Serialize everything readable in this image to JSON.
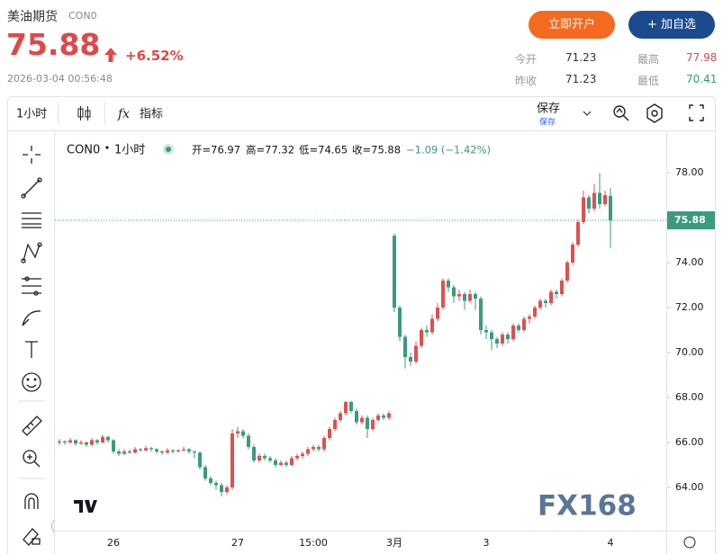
{
  "quote": {
    "name": "美油期货",
    "code": "CON0",
    "price": "75.88",
    "change_pct": "+6.52%",
    "time": "2026-03-04 00:56:48"
  },
  "buttons": {
    "open_account": "立即开户",
    "watchlist": "+ 加自选"
  },
  "stats": [
    {
      "label": "今开",
      "value": "71.23",
      "color": "#333333"
    },
    {
      "label": "最高",
      "value": "77.98",
      "color": "#e04848"
    },
    {
      "label": "昨收",
      "value": "71.23",
      "color": "#333333"
    },
    {
      "label": "最低",
      "value": "70.41",
      "color": "#2e9e6e"
    }
  ],
  "toolbar": {
    "interval": "1小时",
    "indicators": "指标",
    "save": "保存",
    "save_sub": "保存"
  },
  "legend": {
    "symbol": "CON0",
    "interval": "1小时",
    "open": "开=76.97",
    "high": "高=77.32",
    "low": "低=74.65",
    "close": "收=75.88",
    "change": "−1.09 (−1.42%)"
  },
  "watermark": "FX168",
  "chart_data": {
    "type": "candlestick",
    "up_color": "#e0504f",
    "down_color": "#3a9b7e",
    "ylim": [
      62.08,
      79.76
    ],
    "yticks": [
      {
        "value": 64,
        "label": "64.00"
      },
      {
        "value": 66,
        "label": "66.00"
      },
      {
        "value": 68,
        "label": "68.00"
      },
      {
        "value": 70,
        "label": "70.00"
      },
      {
        "value": 72,
        "label": "72.00"
      },
      {
        "value": 74,
        "label": "74.00"
      },
      {
        "value": 76,
        "label": "76.00"
      },
      {
        "value": 78,
        "label": "78.00"
      }
    ],
    "last_price": 75.88,
    "categories": [
      null,
      null,
      null,
      null,
      null,
      null,
      null,
      null,
      null,
      null,
      "26",
      null,
      null,
      null,
      null,
      null,
      null,
      null,
      null,
      null,
      null,
      null,
      null,
      null,
      null,
      null,
      null,
      null,
      null,
      null,
      null,
      null,
      null,
      "27",
      null,
      null,
      null,
      null,
      null,
      null,
      null,
      null,
      null,
      null,
      null,
      null,
      null,
      "15:00",
      null,
      null,
      null,
      null,
      null,
      null,
      null,
      null,
      null,
      null,
      null,
      null,
      null,
      null,
      "3月",
      null,
      null,
      null,
      null,
      null,
      null,
      null,
      null,
      null,
      null,
      null,
      null,
      null,
      null,
      null,
      null,
      "3",
      null,
      null,
      null,
      null,
      null,
      null,
      null,
      null,
      null,
      null,
      null,
      null,
      null,
      null,
      null,
      null,
      null,
      null,
      null,
      null,
      null,
      null,
      "4"
    ],
    "candles": [
      [
        66.0,
        66.15,
        65.9,
        66.05
      ],
      [
        66.05,
        66.1,
        65.9,
        66.0
      ],
      [
        66.0,
        66.2,
        65.95,
        66.1
      ],
      [
        66.1,
        66.15,
        65.85,
        65.95
      ],
      [
        65.95,
        66.1,
        65.9,
        66.0
      ],
      [
        66.0,
        66.05,
        65.8,
        65.9
      ],
      [
        65.9,
        66.2,
        65.85,
        66.1
      ],
      [
        66.1,
        66.15,
        65.9,
        66.0
      ],
      [
        66.0,
        66.35,
        65.95,
        66.25
      ],
      [
        66.25,
        66.3,
        66.0,
        66.1
      ],
      [
        66.1,
        66.15,
        65.5,
        65.6
      ],
      [
        65.6,
        65.7,
        65.4,
        65.5
      ],
      [
        65.5,
        65.7,
        65.45,
        65.6
      ],
      [
        65.6,
        65.7,
        65.5,
        65.55
      ],
      [
        65.55,
        65.8,
        65.5,
        65.7
      ],
      [
        65.7,
        65.75,
        65.6,
        65.65
      ],
      [
        65.65,
        65.85,
        65.6,
        65.75
      ],
      [
        65.75,
        65.8,
        65.6,
        65.7
      ],
      [
        65.7,
        65.75,
        65.5,
        65.6
      ],
      [
        65.6,
        65.65,
        65.45,
        65.55
      ],
      [
        65.55,
        65.75,
        65.5,
        65.65
      ],
      [
        65.65,
        65.7,
        65.5,
        65.6
      ],
      [
        65.6,
        65.7,
        65.55,
        65.65
      ],
      [
        65.65,
        65.8,
        65.6,
        65.7
      ],
      [
        65.7,
        65.75,
        65.5,
        65.6
      ],
      [
        65.6,
        65.65,
        65.3,
        65.55
      ],
      [
        65.55,
        65.6,
        64.8,
        64.9
      ],
      [
        64.9,
        65.0,
        64.3,
        64.4
      ],
      [
        64.4,
        64.5,
        64.1,
        64.2
      ],
      [
        64.2,
        64.3,
        63.9,
        64.1
      ],
      [
        64.1,
        64.2,
        63.6,
        63.8
      ],
      [
        63.8,
        64.1,
        63.7,
        64.0
      ],
      [
        64.0,
        66.6,
        63.9,
        66.4
      ],
      [
        66.4,
        66.7,
        66.2,
        66.5
      ],
      [
        66.5,
        66.6,
        66.2,
        66.3
      ],
      [
        66.3,
        66.4,
        65.7,
        65.8
      ],
      [
        65.8,
        65.9,
        65.1,
        65.2
      ],
      [
        65.2,
        65.5,
        65.1,
        65.4
      ],
      [
        65.4,
        65.5,
        65.2,
        65.3
      ],
      [
        65.3,
        65.4,
        65.1,
        65.2
      ],
      [
        65.2,
        65.3,
        64.9,
        65.0
      ],
      [
        65.0,
        65.2,
        64.95,
        65.1
      ],
      [
        65.1,
        65.2,
        64.9,
        65.0
      ],
      [
        65.0,
        65.4,
        64.95,
        65.3
      ],
      [
        65.3,
        65.5,
        65.2,
        65.4
      ],
      [
        65.4,
        65.6,
        65.3,
        65.5
      ],
      [
        65.5,
        65.8,
        65.4,
        65.7
      ],
      [
        65.7,
        65.9,
        65.6,
        65.8
      ],
      [
        65.8,
        65.9,
        65.6,
        65.7
      ],
      [
        65.7,
        66.3,
        65.6,
        66.2
      ],
      [
        66.2,
        66.7,
        66.1,
        66.6
      ],
      [
        66.6,
        67.1,
        66.5,
        67.0
      ],
      [
        67.0,
        67.4,
        66.9,
        67.3
      ],
      [
        67.3,
        67.85,
        67.2,
        67.8
      ],
      [
        67.8,
        67.85,
        67.3,
        67.4
      ],
      [
        67.4,
        67.5,
        66.8,
        66.9
      ],
      [
        66.9,
        67.2,
        66.8,
        67.1
      ],
      [
        67.1,
        67.2,
        66.2,
        66.6
      ],
      [
        66.6,
        67.1,
        66.5,
        67.0
      ],
      [
        67.0,
        67.3,
        66.9,
        67.2
      ],
      [
        67.2,
        67.3,
        67.0,
        67.1
      ],
      [
        67.1,
        67.4,
        67.0,
        67.3
      ],
      [
        75.2,
        75.3,
        71.8,
        72.0
      ],
      [
        72.0,
        72.1,
        70.5,
        70.7
      ],
      [
        70.7,
        70.8,
        69.3,
        69.8
      ],
      [
        69.8,
        70.0,
        69.4,
        69.6
      ],
      [
        69.6,
        70.5,
        69.5,
        70.3
      ],
      [
        70.3,
        71.1,
        70.2,
        71.0
      ],
      [
        71.0,
        71.2,
        70.7,
        70.9
      ],
      [
        70.9,
        71.7,
        70.8,
        71.5
      ],
      [
        71.5,
        72.2,
        71.4,
        72.0
      ],
      [
        72.0,
        73.3,
        71.9,
        73.2
      ],
      [
        73.2,
        73.3,
        72.7,
        72.9
      ],
      [
        72.9,
        73.0,
        72.2,
        72.5
      ],
      [
        72.5,
        72.8,
        72.3,
        72.6
      ],
      [
        72.6,
        72.7,
        71.9,
        72.3
      ],
      [
        72.3,
        72.8,
        72.2,
        72.6
      ],
      [
        72.6,
        72.7,
        71.9,
        72.4
      ],
      [
        72.4,
        72.5,
        70.8,
        71.0
      ],
      [
        71.0,
        71.2,
        70.6,
        70.9
      ],
      [
        70.9,
        71.0,
        70.1,
        70.6
      ],
      [
        70.6,
        70.7,
        70.2,
        70.4
      ],
      [
        70.4,
        70.9,
        70.3,
        70.8
      ],
      [
        70.8,
        70.9,
        70.4,
        70.6
      ],
      [
        70.6,
        71.3,
        70.5,
        71.2
      ],
      [
        71.2,
        71.3,
        70.9,
        71.0
      ],
      [
        71.0,
        71.6,
        70.9,
        71.5
      ],
      [
        71.5,
        71.7,
        71.3,
        71.6
      ],
      [
        71.6,
        72.1,
        71.5,
        72.0
      ],
      [
        72.0,
        72.4,
        71.9,
        72.3
      ],
      [
        72.3,
        72.4,
        72.0,
        72.2
      ],
      [
        72.2,
        72.8,
        72.1,
        72.7
      ],
      [
        72.7,
        72.8,
        72.4,
        72.6
      ],
      [
        72.6,
        73.3,
        72.5,
        73.2
      ],
      [
        73.2,
        74.1,
        73.1,
        74.0
      ],
      [
        74.0,
        74.9,
        73.9,
        74.8
      ],
      [
        74.8,
        75.9,
        74.7,
        75.8
      ],
      [
        75.8,
        77.2,
        75.7,
        76.9
      ],
      [
        76.9,
        77.0,
        76.2,
        76.4
      ],
      [
        76.4,
        77.5,
        76.3,
        77.1
      ],
      [
        77.1,
        77.98,
        76.4,
        76.6
      ],
      [
        76.6,
        77.2,
        76.5,
        77.0
      ],
      [
        76.97,
        77.32,
        74.65,
        75.88
      ]
    ]
  }
}
